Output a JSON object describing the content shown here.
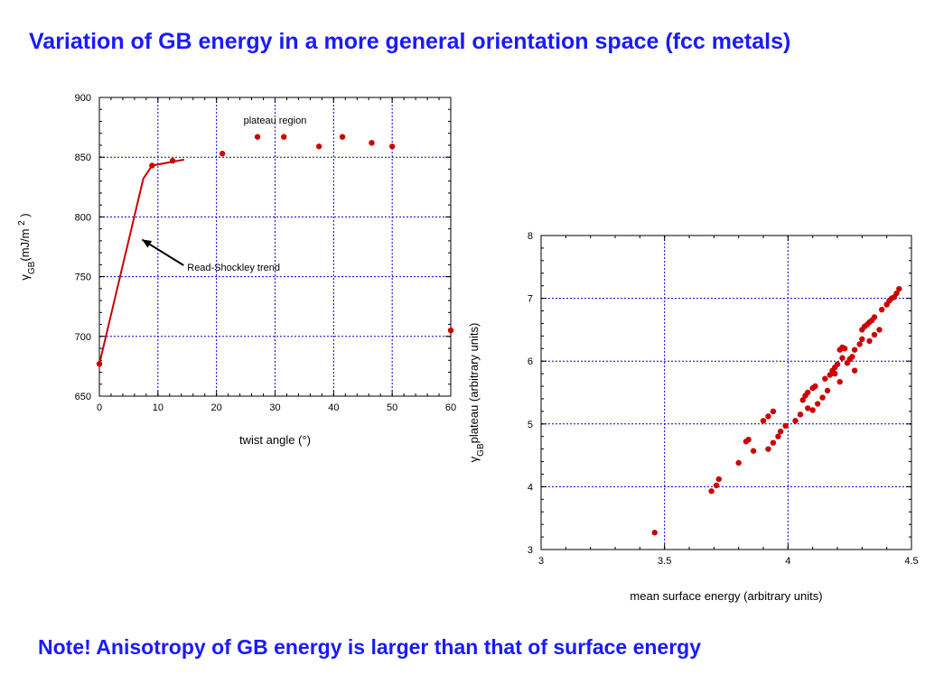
{
  "slide": {
    "title": "Variation of GB energy in a more general orientation space (fcc metals)",
    "note": "Note! Anisotropy of GB energy is larger than that of surface energy"
  },
  "colors": {
    "accent": "#1a1aff",
    "series": "#cc0000",
    "grid": "#0000cc"
  },
  "chart_data": [
    {
      "type": "scatter",
      "xlabel": "twist angle (°)",
      "ylabel": "γGB (mJ/m 2 )",
      "ylabel_parts": {
        "symbol": "γ",
        "sub": "GB",
        "unit": "(mJ/m",
        "sup": "2",
        "close": ")"
      },
      "xlim": [
        0,
        60
      ],
      "ylim": [
        650,
        900
      ],
      "xticks": [
        "0",
        "10",
        "20",
        "30",
        "40",
        "50",
        "60"
      ],
      "yticks": [
        "650",
        "700",
        "750",
        "800",
        "850",
        "900"
      ],
      "grid": true,
      "series": [
        {
          "type": "scatter",
          "points": [
            [
              0,
              677
            ],
            [
              9,
              843
            ],
            [
              12.5,
              847
            ],
            [
              21,
              853
            ],
            [
              27,
              867
            ],
            [
              31.5,
              867
            ],
            [
              37.5,
              859
            ],
            [
              41.5,
              867
            ],
            [
              46.5,
              862
            ],
            [
              50,
              859
            ],
            [
              60,
              705
            ]
          ]
        },
        {
          "type": "line",
          "points": [
            [
              0,
              677
            ],
            [
              7.5,
              832
            ],
            [
              9,
              843
            ],
            [
              14.5,
              848
            ]
          ]
        }
      ],
      "annotations": [
        {
          "text": "plateau region",
          "x": 30,
          "y": 878
        },
        {
          "text": "Read-Shockley trend",
          "x": 15,
          "y": 755,
          "arrow_to": [
            7.3,
            781
          ]
        }
      ]
    },
    {
      "type": "scatter",
      "xlabel": "mean surface energy (arbitrary units)",
      "ylabel": "γGB plateau (arbitrary units)",
      "ylabel_parts": {
        "symbol": "γ",
        "sub": "GB",
        "rest": "plateau (arbitrary units)"
      },
      "xlim": [
        3,
        4.5
      ],
      "ylim": [
        3,
        8
      ],
      "xticks": [
        "3",
        "3.5",
        "4",
        "4.5"
      ],
      "yticks": [
        "3",
        "4",
        "5",
        "6",
        "7",
        "8"
      ],
      "grid": true,
      "series": [
        {
          "type": "scatter",
          "points": [
            [
              3.46,
              3.27
            ],
            [
              3.69,
              3.93
            ],
            [
              3.71,
              4.02
            ],
            [
              3.72,
              4.12
            ],
            [
              3.8,
              4.38
            ],
            [
              3.83,
              4.72
            ],
            [
              3.84,
              4.75
            ],
            [
              3.86,
              4.57
            ],
            [
              3.9,
              5.05
            ],
            [
              3.92,
              4.6
            ],
            [
              3.92,
              5.12
            ],
            [
              3.94,
              5.2
            ],
            [
              3.94,
              4.7
            ],
            [
              3.96,
              4.8
            ],
            [
              3.97,
              4.88
            ],
            [
              3.99,
              4.97
            ],
            [
              4.03,
              5.05
            ],
            [
              4.05,
              5.15
            ],
            [
              4.06,
              5.38
            ],
            [
              4.07,
              5.45
            ],
            [
              4.08,
              5.25
            ],
            [
              4.08,
              5.5
            ],
            [
              4.1,
              5.57
            ],
            [
              4.1,
              5.22
            ],
            [
              4.11,
              5.6
            ],
            [
              4.12,
              5.32
            ],
            [
              4.14,
              5.42
            ],
            [
              4.15,
              5.72
            ],
            [
              4.16,
              5.53
            ],
            [
              4.17,
              5.78
            ],
            [
              4.18,
              5.85
            ],
            [
              4.19,
              5.9
            ],
            [
              4.19,
              5.8
            ],
            [
              4.2,
              5.95
            ],
            [
              4.21,
              6.18
            ],
            [
              4.21,
              5.67
            ],
            [
              4.22,
              6.22
            ],
            [
              4.22,
              6.05
            ],
            [
              4.23,
              6.2
            ],
            [
              4.24,
              5.97
            ],
            [
              4.25,
              6.03
            ],
            [
              4.26,
              6.07
            ],
            [
              4.27,
              5.85
            ],
            [
              4.27,
              6.18
            ],
            [
              4.29,
              6.27
            ],
            [
              4.3,
              6.5
            ],
            [
              4.3,
              6.35
            ],
            [
              4.31,
              6.55
            ],
            [
              4.32,
              6.58
            ],
            [
              4.33,
              6.62
            ],
            [
              4.33,
              6.32
            ],
            [
              4.34,
              6.65
            ],
            [
              4.35,
              6.7
            ],
            [
              4.35,
              6.42
            ],
            [
              4.37,
              6.5
            ],
            [
              4.38,
              6.82
            ],
            [
              4.4,
              6.9
            ],
            [
              4.41,
              6.96
            ],
            [
              4.42,
              7.0
            ],
            [
              4.43,
              7.02
            ],
            [
              4.44,
              7.08
            ],
            [
              4.45,
              7.15
            ]
          ]
        }
      ]
    }
  ]
}
